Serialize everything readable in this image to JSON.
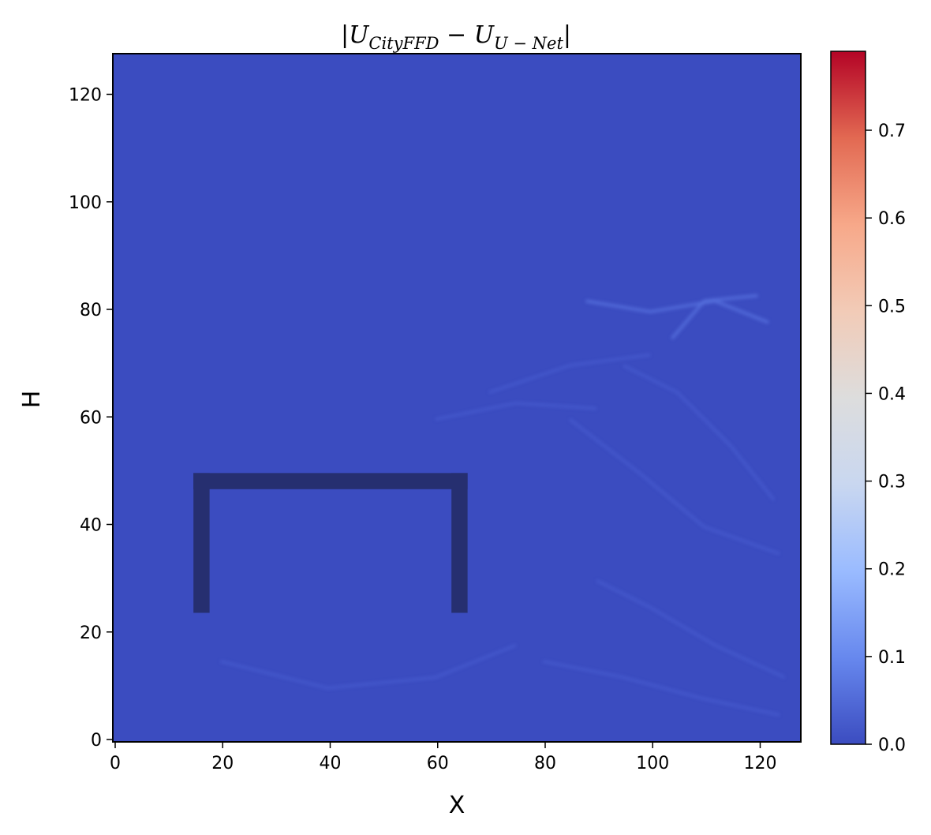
{
  "chart_data": {
    "type": "heatmap",
    "title": {
      "bars_left": "|",
      "a_symbol": "U",
      "a_subscript": "CityFFD",
      "operator": " − ",
      "b_symbol": "U",
      "b_subscript": "U − Net",
      "bars_right": "|"
    },
    "xlabel": "X",
    "ylabel": "H",
    "xlim": [
      0,
      128
    ],
    "ylim": [
      0,
      128
    ],
    "x_ticks": [
      "0",
      "20",
      "40",
      "60",
      "80",
      "100",
      "120"
    ],
    "y_ticks": [
      "0",
      "20",
      "40",
      "60",
      "80",
      "100",
      "120"
    ],
    "x_tick_values": [
      0,
      20,
      40,
      60,
      80,
      100,
      120
    ],
    "y_tick_values": [
      0,
      20,
      40,
      60,
      80,
      100,
      120
    ],
    "colormap": "coolwarm",
    "colorbar": {
      "min": 0.0,
      "max": 0.79,
      "ticks": [
        "0.0",
        "0.1",
        "0.2",
        "0.3",
        "0.4",
        "0.5",
        "0.6",
        "0.7"
      ],
      "tick_values": [
        0.0,
        0.1,
        0.2,
        0.3,
        0.4,
        0.5,
        0.6,
        0.7
      ],
      "stops": [
        "#3b4cc0",
        "#6788ee",
        "#9abbff",
        "#c9d7f0",
        "#dddddd",
        "#f2cbb7",
        "#f7a889",
        "#e26952",
        "#b40426"
      ]
    },
    "field_description_value_range": [
      0.0,
      0.05
    ],
    "obstacle": {
      "shape": "inverted U (three rectangular walls)",
      "color": "#262f70",
      "walls": [
        {
          "x": [
            15,
            18
          ],
          "y": [
            24,
            50
          ]
        },
        {
          "x": [
            63,
            66
          ],
          "y": [
            24,
            50
          ]
        },
        {
          "x": [
            15,
            66
          ],
          "y": [
            47,
            50
          ]
        }
      ]
    },
    "grid": false
  }
}
